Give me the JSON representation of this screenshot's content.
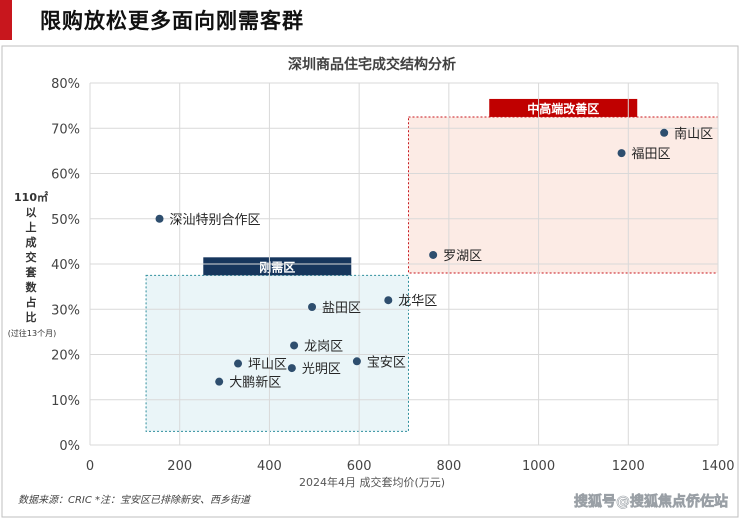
{
  "header": {
    "title": "限购放松更多面向刚需客群"
  },
  "chart_data": {
    "type": "scatter",
    "title": "深圳商品住宅成交结构分析",
    "xlabel": "2024年4月 成交套均价(万元)",
    "ylabel_lines": [
      "110㎡",
      "以",
      "上",
      "成",
      "交",
      "套",
      "数",
      "占",
      "比"
    ],
    "ylabel_note": "(过往13个月)",
    "xlim": [
      0,
      1400
    ],
    "ylim": [
      0,
      80
    ],
    "x_ticks": [
      0,
      200,
      400,
      600,
      800,
      1000,
      1200,
      1400
    ],
    "y_ticks": [
      0,
      10,
      20,
      30,
      40,
      50,
      60,
      70,
      80
    ],
    "y_tick_labels": [
      "0%",
      "10%",
      "20%",
      "30%",
      "40%",
      "50%",
      "60%",
      "70%",
      "80%"
    ],
    "grid": true,
    "points": [
      {
        "label": "南山区",
        "x": 1280,
        "y": 69
      },
      {
        "label": "福田区",
        "x": 1185,
        "y": 64.5
      },
      {
        "label": "罗湖区",
        "x": 765,
        "y": 42
      },
      {
        "label": "深汕特别合作区",
        "x": 155,
        "y": 50
      },
      {
        "label": "龙华区",
        "x": 665,
        "y": 32
      },
      {
        "label": "盐田区",
        "x": 495,
        "y": 30.5
      },
      {
        "label": "龙岗区",
        "x": 455,
        "y": 22
      },
      {
        "label": "宝安区",
        "x": 595,
        "y": 18.5
      },
      {
        "label": "坪山区",
        "x": 330,
        "y": 18
      },
      {
        "label": "光明区",
        "x": 450,
        "y": 17
      },
      {
        "label": "大鹏新区",
        "x": 288,
        "y": 14
      }
    ],
    "zones": [
      {
        "label": "中高端改善区",
        "x0": 710,
        "x1": 1400,
        "y0": 38,
        "y1": 72.5,
        "fill": "#fbe7e0",
        "stroke": "#c8161d",
        "tag_color": "#c00000"
      },
      {
        "label": "刚需区",
        "x0": 125,
        "x1": 710,
        "y0": 3,
        "y1": 37.5,
        "fill": "#e6f3f7",
        "stroke": "#2f8f9d",
        "tag_color": "#17365d"
      }
    ],
    "colors": {
      "point": "#2e4e6e",
      "axis_text": "#444444"
    }
  },
  "footer": {
    "source": "数据来源：CRIC *注：宝安区已排除新安、西乡街道",
    "watermark": "搜狐号@搜狐焦点侨佐站"
  }
}
